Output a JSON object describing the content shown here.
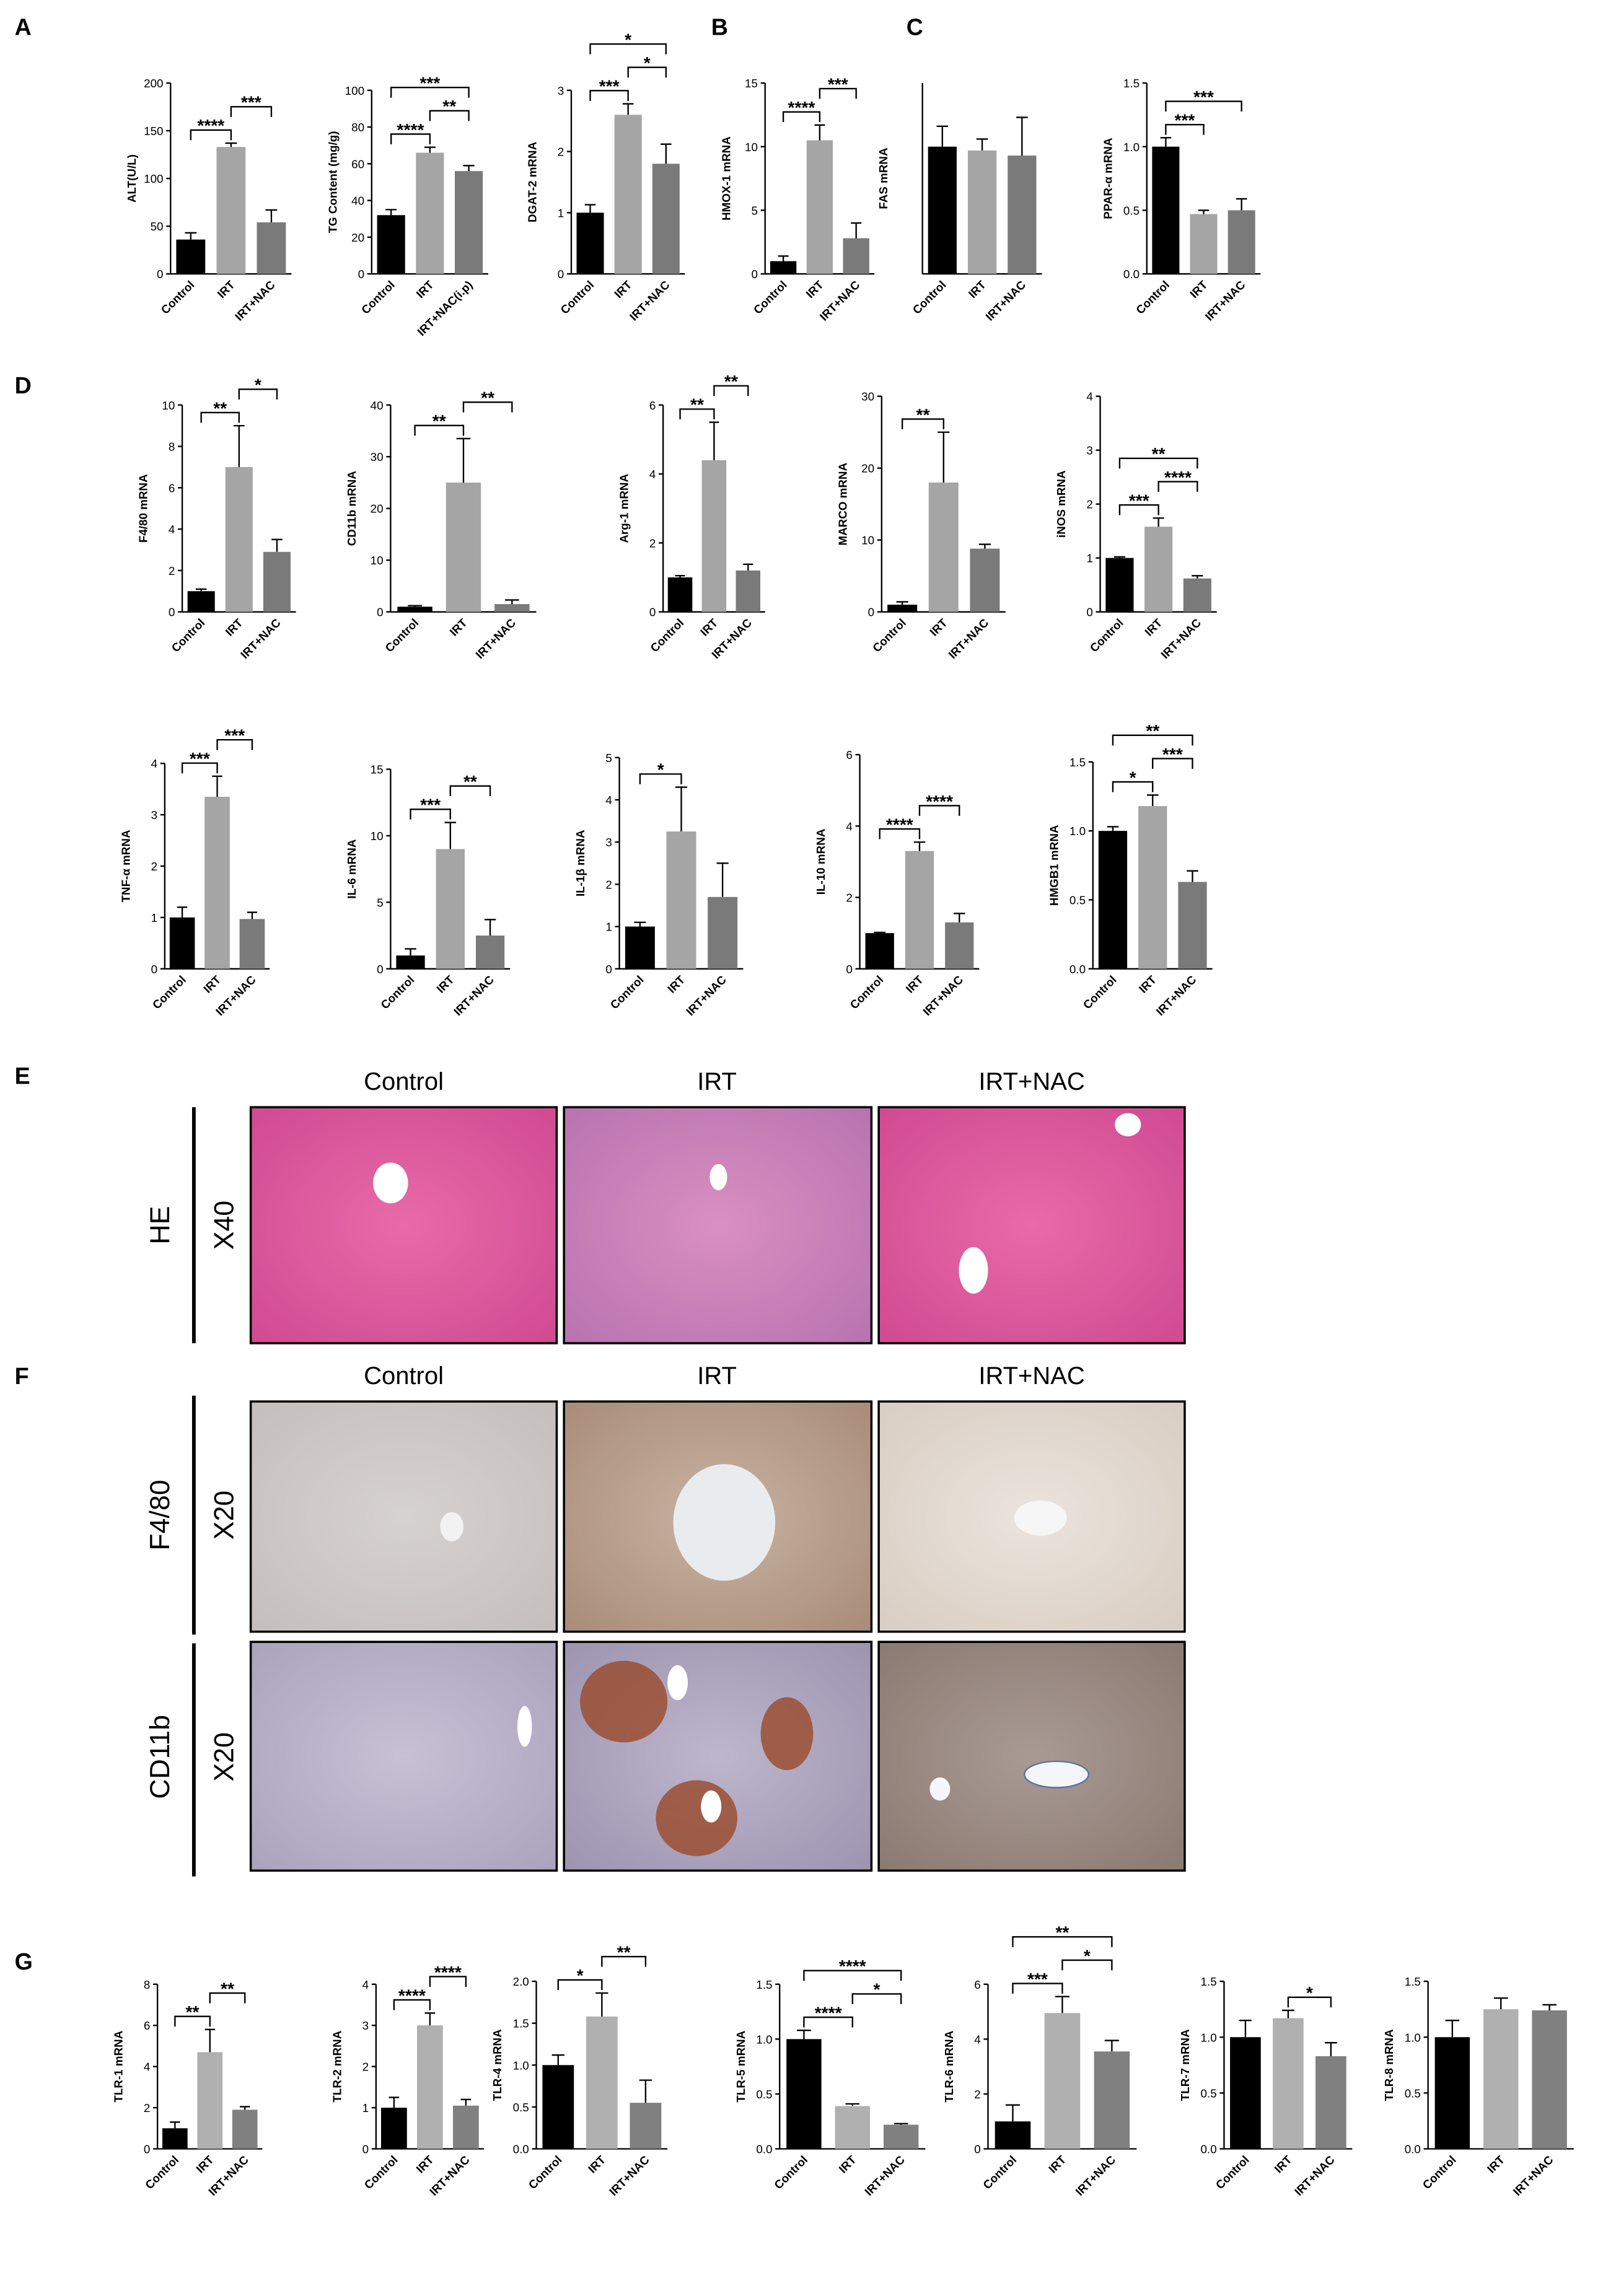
{
  "panel_labels": [
    "A",
    "B",
    "C",
    "D",
    "E",
    "F",
    "G"
  ],
  "histology": [
    {
      "columns": [
        "Control",
        "IRT",
        "IRT+NAC"
      ],
      "rows": [
        {
          "stain": "HE",
          "magnification": "X40"
        }
      ]
    },
    {
      "columns": [
        "Control",
        "IRT",
        "IRT+NAC"
      ],
      "rows": [
        {
          "stain": "F4/80",
          "magnification": "X20"
        },
        {
          "stain": "CD11b",
          "magnification": "X20"
        }
      ]
    }
  ],
  "chart_data": [
    {
      "type": "bar",
      "ylabel": "ALT(U/L)",
      "categories": [
        "Control",
        "IRT",
        "IRT+NAC"
      ],
      "values": [
        36,
        133,
        54
      ],
      "errors": [
        7,
        4,
        13
      ],
      "colors": [
        "#000000",
        "#a5a5a5",
        "#7a7a7a"
      ],
      "ylim": [
        0,
        200
      ],
      "yticks": [
        0,
        50,
        100,
        150,
        200
      ],
      "significance": [
        {
          "label": "****",
          "pair": [
            0,
            1
          ]
        },
        {
          "label": "***",
          "pair": [
            1,
            2
          ]
        }
      ]
    },
    {
      "type": "bar",
      "ylabel": "TG Content (mg/g)",
      "categories": [
        "Control",
        "IRT",
        "IRT+NAC(i.p)"
      ],
      "values": [
        32,
        66,
        56
      ],
      "errors": [
        3,
        3,
        3
      ],
      "colors": [
        "#000000",
        "#a5a5a5",
        "#7a7a7a"
      ],
      "ylim": [
        0,
        100
      ],
      "yticks": [
        0,
        20,
        40,
        60,
        80,
        100
      ],
      "significance": [
        {
          "label": "****",
          "pair": [
            0,
            1
          ]
        },
        {
          "label": "**",
          "pair": [
            1,
            2
          ]
        },
        {
          "label": "***",
          "pair": [
            0,
            2
          ]
        }
      ]
    },
    {
      "type": "bar",
      "ylabel": "DGAT-2 mRNA",
      "categories": [
        "Control",
        "IRT",
        "IRT+NAC"
      ],
      "values": [
        1.0,
        2.6,
        1.8
      ],
      "errors": [
        0.13,
        0.18,
        0.32
      ],
      "colors": [
        "#000000",
        "#a5a5a5",
        "#7a7a7a"
      ],
      "ylim": [
        0,
        3
      ],
      "yticks": [
        0,
        1,
        2,
        3
      ],
      "significance": [
        {
          "label": "***",
          "pair": [
            0,
            1
          ]
        },
        {
          "label": "*",
          "pair": [
            1,
            2
          ]
        },
        {
          "label": "*",
          "pair": [
            0,
            2
          ]
        }
      ]
    },
    {
      "type": "bar",
      "ylabel": "HMOX-1 mRNA",
      "categories": [
        "Control",
        "IRT",
        "IRT+NAC"
      ],
      "values": [
        1.0,
        10.5,
        2.8
      ],
      "errors": [
        0.4,
        1.2,
        1.2
      ],
      "colors": [
        "#000000",
        "#a5a5a5",
        "#7a7a7a"
      ],
      "ylim": [
        0,
        15
      ],
      "yticks": [
        0,
        5,
        10,
        15
      ],
      "significance": [
        {
          "label": "****",
          "pair": [
            0,
            1
          ]
        },
        {
          "label": "***",
          "pair": [
            1,
            2
          ]
        }
      ]
    },
    {
      "type": "bar",
      "ylabel": "FAS mRNA",
      "categories": [
        "Control",
        "IRT",
        "IRT+NAC"
      ],
      "values": [
        1.0,
        0.97,
        0.93
      ],
      "errors": [
        0.16,
        0.09,
        0.3
      ],
      "colors": [
        "#000000",
        "#a5a5a5",
        "#7a7a7a"
      ],
      "ylim": [
        0,
        1.5
      ],
      "significance": []
    },
    {
      "type": "bar",
      "ylabel": "PPAR-α mRNA",
      "categories": [
        "Control",
        "IRT",
        "IRT+NAC"
      ],
      "values": [
        1.0,
        0.47,
        0.5
      ],
      "errors": [
        0.07,
        0.03,
        0.09
      ],
      "colors": [
        "#000000",
        "#a5a5a5",
        "#7a7a7a"
      ],
      "ylim": [
        0,
        1.5
      ],
      "yticks": [
        {
          "value": 0,
          "label": "0.0"
        },
        {
          "value": 0.5,
          "label": "0.5"
        },
        {
          "value": 1,
          "label": "1.0"
        },
        {
          "value": 1.5,
          "label": "1.5"
        }
      ],
      "significance": [
        {
          "label": "***",
          "pair": [
            0,
            1
          ]
        },
        {
          "label": "***",
          "pair": [
            0,
            2
          ]
        }
      ]
    },
    {
      "type": "bar",
      "ylabel": "F4/80 mRNA",
      "categories": [
        "Control",
        "IRT",
        "IRT+NAC"
      ],
      "values": [
        1.0,
        7.0,
        2.9
      ],
      "errors": [
        0.1,
        2.0,
        0.6
      ],
      "colors": [
        "#000000",
        "#a5a5a5",
        "#7a7a7a"
      ],
      "ylim": [
        0,
        10
      ],
      "yticks": [
        0,
        2,
        4,
        6,
        8,
        10
      ],
      "significance": [
        {
          "label": "**",
          "pair": [
            0,
            1
          ]
        },
        {
          "label": "*",
          "pair": [
            1,
            2
          ]
        }
      ]
    },
    {
      "type": "bar",
      "ylabel": "CD11b mRNA",
      "categories": [
        "Control",
        "IRT",
        "IRT+NAC"
      ],
      "values": [
        1,
        25,
        1.5
      ],
      "errors": [
        0.2,
        8.5,
        0.8
      ],
      "colors": [
        "#000000",
        "#a5a5a5",
        "#7a7a7a"
      ],
      "ylim": [
        0,
        40
      ],
      "yticks": [
        0,
        10,
        20,
        30,
        40
      ],
      "significance": [
        {
          "label": "**",
          "pair": [
            0,
            1
          ]
        },
        {
          "label": "**",
          "pair": [
            1,
            2
          ]
        }
      ]
    },
    {
      "type": "bar",
      "ylabel": "Arg-1 mRNA",
      "categories": [
        "Control",
        "IRT",
        "IRT+NAC"
      ],
      "values": [
        1.0,
        4.4,
        1.2
      ],
      "errors": [
        0.05,
        1.1,
        0.18
      ],
      "colors": [
        "#000000",
        "#a5a5a5",
        "#7a7a7a"
      ],
      "ylim": [
        0,
        6
      ],
      "yticks": [
        0,
        2,
        4,
        6
      ],
      "significance": [
        {
          "label": "**",
          "pair": [
            0,
            1
          ]
        },
        {
          "label": "**",
          "pair": [
            1,
            2
          ]
        }
      ]
    },
    {
      "type": "bar",
      "ylabel": "MARCO mRNA",
      "categories": [
        "Control",
        "IRT",
        "IRT+NAC"
      ],
      "values": [
        1,
        18,
        8.8
      ],
      "errors": [
        0.4,
        7,
        0.6
      ],
      "colors": [
        "#000000",
        "#a5a5a5",
        "#7a7a7a"
      ],
      "ylim": [
        0,
        30
      ],
      "yticks": [
        0,
        10,
        20,
        30
      ],
      "significance": [
        {
          "label": "**",
          "pair": [
            0,
            1
          ]
        }
      ]
    },
    {
      "type": "bar",
      "ylabel": "iNOS mRNA",
      "categories": [
        "Control",
        "IRT",
        "IRT+NAC"
      ],
      "values": [
        1.0,
        1.58,
        0.62
      ],
      "errors": [
        0.02,
        0.16,
        0.05
      ],
      "colors": [
        "#000000",
        "#a5a5a5",
        "#7a7a7a"
      ],
      "ylim": [
        0,
        4
      ],
      "yticks": [
        0,
        1,
        2,
        3,
        4
      ],
      "significance": [
        {
          "label": "***",
          "pair": [
            0,
            1
          ]
        },
        {
          "label": "****",
          "pair": [
            1,
            2
          ]
        },
        {
          "label": "**",
          "pair": [
            0,
            2
          ]
        }
      ]
    },
    {
      "type": "bar",
      "ylabel": "TNF-α mRNA",
      "categories": [
        "Control",
        "IRT",
        "IRT+NAC"
      ],
      "values": [
        1.0,
        3.35,
        0.97
      ],
      "errors": [
        0.2,
        0.4,
        0.13
      ],
      "colors": [
        "#000000",
        "#a5a5a5",
        "#7a7a7a"
      ],
      "ylim": [
        0,
        4
      ],
      "yticks": [
        0,
        1,
        2,
        3,
        4
      ],
      "significance": [
        {
          "label": "***",
          "pair": [
            0,
            1
          ]
        },
        {
          "label": "***",
          "pair": [
            1,
            2
          ]
        }
      ]
    },
    {
      "type": "bar",
      "ylabel": "IL-6 mRNA",
      "categories": [
        "Control",
        "IRT",
        "IRT+NAC"
      ],
      "values": [
        1,
        9,
        2.5
      ],
      "errors": [
        0.5,
        2,
        1.2
      ],
      "colors": [
        "#000000",
        "#a5a5a5",
        "#7a7a7a"
      ],
      "ylim": [
        0,
        15
      ],
      "yticks": [
        0,
        5,
        10,
        15
      ],
      "significance": [
        {
          "label": "***",
          "pair": [
            0,
            1
          ]
        },
        {
          "label": "**",
          "pair": [
            1,
            2
          ]
        }
      ]
    },
    {
      "type": "bar",
      "ylabel": "IL-1β mRNA",
      "categories": [
        "Control",
        "IRT",
        "IRT+NAC"
      ],
      "values": [
        1.0,
        3.25,
        1.7
      ],
      "errors": [
        0.1,
        1.05,
        0.8
      ],
      "colors": [
        "#000000",
        "#a5a5a5",
        "#7a7a7a"
      ],
      "ylim": [
        0,
        5
      ],
      "yticks": [
        0,
        1,
        2,
        3,
        4,
        5
      ],
      "significance": [
        {
          "label": "*",
          "pair": [
            0,
            1
          ]
        }
      ]
    },
    {
      "type": "bar",
      "ylabel": "IL-10 mRNA",
      "categories": [
        "Control",
        "IRT",
        "IRT+NAC"
      ],
      "values": [
        1.0,
        3.3,
        1.3
      ],
      "errors": [
        0.02,
        0.25,
        0.25
      ],
      "colors": [
        "#000000",
        "#a5a5a5",
        "#7a7a7a"
      ],
      "ylim": [
        0,
        6
      ],
      "yticks": [
        0,
        2,
        4,
        6
      ],
      "significance": [
        {
          "label": "****",
          "pair": [
            0,
            1
          ]
        },
        {
          "label": "****",
          "pair": [
            1,
            2
          ]
        }
      ]
    },
    {
      "type": "bar",
      "ylabel": "HMGB1 mRNA",
      "categories": [
        "Control",
        "IRT",
        "IRT+NAC"
      ],
      "values": [
        1.0,
        1.18,
        0.63
      ],
      "errors": [
        0.03,
        0.08,
        0.08
      ],
      "colors": [
        "#000000",
        "#a5a5a5",
        "#7a7a7a"
      ],
      "ylim": [
        0,
        1.5
      ],
      "yticks": [
        {
          "value": 0,
          "label": "0.0"
        },
        {
          "value": 0.5,
          "label": "0.5"
        },
        {
          "value": 1,
          "label": "1.0"
        },
        {
          "value": 1.5,
          "label": "1.5"
        }
      ],
      "significance": [
        {
          "label": "*",
          "pair": [
            0,
            1
          ]
        },
        {
          "label": "***",
          "pair": [
            1,
            2
          ]
        },
        {
          "label": "**",
          "pair": [
            0,
            2
          ]
        }
      ]
    },
    {
      "type": "bar",
      "ylabel": "TLR-1 mRNA",
      "categories": [
        "Control",
        "IRT",
        "IRT+NAC"
      ],
      "values": [
        1.0,
        4.7,
        1.9
      ],
      "errors": [
        0.3,
        1.1,
        0.15
      ],
      "colors": [
        "#000000",
        "#b0b0b0",
        "#808080"
      ],
      "ylim": [
        0,
        8
      ],
      "yticks": [
        0,
        2,
        4,
        6,
        8
      ],
      "significance": [
        {
          "label": "**",
          "pair": [
            0,
            1
          ]
        },
        {
          "label": "**",
          "pair": [
            1,
            2
          ]
        }
      ]
    },
    {
      "type": "bar",
      "ylabel": "TLR-2 mRNA",
      "categories": [
        "Control",
        "IRT",
        "IRT+NAC"
      ],
      "values": [
        1.0,
        3.0,
        1.05
      ],
      "errors": [
        0.25,
        0.3,
        0.15
      ],
      "colors": [
        "#000000",
        "#b0b0b0",
        "#808080"
      ],
      "ylim": [
        0,
        4
      ],
      "yticks": [
        0,
        1,
        2,
        3,
        4
      ],
      "significance": [
        {
          "label": "****",
          "pair": [
            0,
            1
          ]
        },
        {
          "label": "****",
          "pair": [
            1,
            2
          ]
        }
      ]
    },
    {
      "type": "bar",
      "ylabel": "TLR-4 mRNA",
      "categories": [
        "Control",
        "IRT",
        "IRT+NAC"
      ],
      "values": [
        1.0,
        1.58,
        0.55
      ],
      "errors": [
        0.12,
        0.28,
        0.27
      ],
      "colors": [
        "#000000",
        "#b0b0b0",
        "#808080"
      ],
      "ylim": [
        0,
        2
      ],
      "yticks": [
        {
          "value": 0,
          "label": "0.0"
        },
        {
          "value": 0.5,
          "label": "0.5"
        },
        {
          "value": 1,
          "label": "1.0"
        },
        {
          "value": 1.5,
          "label": "1.5"
        },
        {
          "value": 2,
          "label": "2.0"
        }
      ],
      "significance": [
        {
          "label": "*",
          "pair": [
            0,
            1
          ]
        },
        {
          "label": "**",
          "pair": [
            1,
            2
          ]
        }
      ]
    },
    {
      "type": "bar",
      "ylabel": "TLR-5 mRNA",
      "categories": [
        "Control",
        "IRT",
        "IRT+NAC"
      ],
      "values": [
        1.0,
        0.39,
        0.22
      ],
      "errors": [
        0.08,
        0.02,
        0.01
      ],
      "colors": [
        "#000000",
        "#b0b0b0",
        "#808080"
      ],
      "ylim": [
        0,
        1.5
      ],
      "yticks": [
        {
          "value": 0,
          "label": "0.0"
        },
        {
          "value": 0.5,
          "label": "0.5"
        },
        {
          "value": 1,
          "label": "1.0"
        },
        {
          "value": 1.5,
          "label": "1.5"
        }
      ],
      "significance": [
        {
          "label": "****",
          "pair": [
            0,
            1
          ]
        },
        {
          "label": "*",
          "pair": [
            1,
            2
          ]
        },
        {
          "label": "****",
          "pair": [
            0,
            2
          ]
        }
      ]
    },
    {
      "type": "bar",
      "ylabel": "TLR-6 mRNA",
      "categories": [
        "Control",
        "IRT",
        "IRT+NAC"
      ],
      "values": [
        1.0,
        4.95,
        3.55
      ],
      "errors": [
        0.6,
        0.6,
        0.4
      ],
      "colors": [
        "#000000",
        "#b0b0b0",
        "#808080"
      ],
      "ylim": [
        0,
        6
      ],
      "yticks": [
        0,
        2,
        4,
        6
      ],
      "significance": [
        {
          "label": "***",
          "pair": [
            0,
            1
          ]
        },
        {
          "label": "*",
          "pair": [
            1,
            2
          ]
        },
        {
          "label": "**",
          "pair": [
            0,
            2
          ]
        }
      ]
    },
    {
      "type": "bar",
      "ylabel": "TLR-7 mRNA",
      "categories": [
        "Control",
        "IRT",
        "IRT+NAC"
      ],
      "values": [
        1.0,
        1.17,
        0.83
      ],
      "errors": [
        0.15,
        0.07,
        0.12
      ],
      "colors": [
        "#000000",
        "#b0b0b0",
        "#808080"
      ],
      "ylim": [
        0,
        1.5
      ],
      "yticks": [
        {
          "value": 0,
          "label": "0.0"
        },
        {
          "value": 0.5,
          "label": "0.5"
        },
        {
          "value": 1,
          "label": "1.0"
        },
        {
          "value": 1.5,
          "label": "1.5"
        }
      ],
      "significance": [
        {
          "label": "*",
          "pair": [
            1,
            2
          ]
        }
      ]
    },
    {
      "type": "bar",
      "ylabel": "TLR-8 mRNA",
      "categories": [
        "Control",
        "IRT",
        "IRT+NAC"
      ],
      "values": [
        1.0,
        1.25,
        1.24
      ],
      "errors": [
        0.15,
        0.1,
        0.05
      ],
      "colors": [
        "#000000",
        "#b0b0b0",
        "#808080"
      ],
      "ylim": [
        0,
        1.5
      ],
      "yticks": [
        {
          "value": 0,
          "label": "0.0"
        },
        {
          "value": 0.5,
          "label": "0.5"
        },
        {
          "value": 1,
          "label": "1.0"
        },
        {
          "value": 1.5,
          "label": "1.5"
        }
      ],
      "significance": []
    }
  ]
}
